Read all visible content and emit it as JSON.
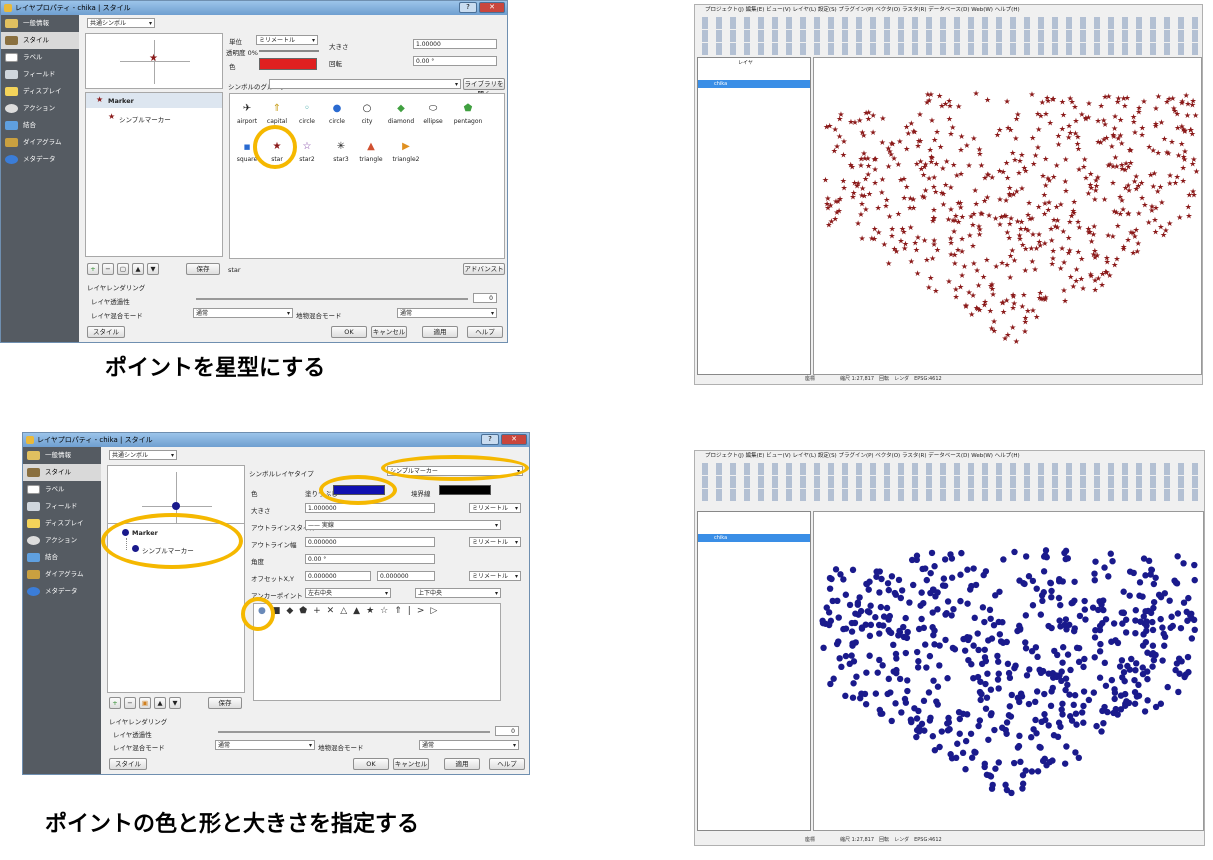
{
  "captions": {
    "top": "ポイントを星型にする",
    "bottom": "ポイントの色と形と大きさを指定する"
  },
  "dialog1": {
    "title": "レイヤプロパティ - chika | スタイル",
    "help_button": "?",
    "close_button": "✕",
    "sidebar": [
      "一般情報",
      "スタイル",
      "ラベル",
      "フィールド",
      "ディスプレイ",
      "アクション",
      "結合",
      "ダイアグラム",
      "メタデータ"
    ],
    "renderer": "共通シンボル",
    "unit_label": "単位",
    "unit_value": "ミリメートル",
    "transparency_label": "透明度 0%",
    "color_label": "色",
    "size_label": "大きさ",
    "size_value": "1.00000",
    "rotation_label": "回転",
    "rotation_value": "0.00 °",
    "group_label": "シンボルのグループ",
    "library_button": "ライブラリを開く",
    "tree_marker": "Marker",
    "tree_simple": "シンプルマーカー",
    "symbols": [
      "airport",
      "capital",
      "circle",
      "city",
      "diamond",
      "ellipse",
      "pentagon",
      "square",
      "star",
      "star2",
      "star3",
      "triangle",
      "triangle2"
    ],
    "save_button": "保存",
    "name_value": "star",
    "advanced_button": "アドバンスト",
    "rendering_group": "レイヤレンダリング",
    "layer_transparency": "レイヤ透過性",
    "transparency_value": "0",
    "blend_mode_label": "レイヤ混合モード",
    "blend_mode_value": "通常",
    "feature_blend_label": "地物混合モード",
    "feature_blend_value": "通常",
    "style_button": "スタイル",
    "ok": "OK",
    "cancel": "キャンセル",
    "apply": "適用",
    "help": "ヘルプ"
  },
  "dialog2": {
    "title": "レイヤプロパティ - chika | スタイル",
    "help_button": "?",
    "close_button": "✕",
    "sidebar": [
      "一般情報",
      "スタイル",
      "ラベル",
      "フィールド",
      "ディスプレイ",
      "アクション",
      "結合",
      "ダイアグラム",
      "メタデータ"
    ],
    "renderer": "共通シンボル",
    "layer_type_label": "シンボルレイヤタイプ",
    "layer_type_value": "シンプルマーカー",
    "color_label": "色",
    "fill_label": "塗りつぶし",
    "border_label": "境界線",
    "size_label": "大きさ",
    "size_value": "1.000000",
    "unit_value": "ミリメートル",
    "outline_style_label": "アウトラインスタイル",
    "outline_style_value": "—— 実線",
    "outline_width_label": "アウトライン幅",
    "outline_width_value": "0.000000",
    "angle_label": "角度",
    "angle_value": "0.00 °",
    "offset_label": "オフセットX,Y",
    "offset_x": "0.000000",
    "offset_y": "0.000000",
    "anchor_label": "アンカーポイント",
    "anchor_h": "左右中央",
    "anchor_v": "上下中央",
    "tree_marker": "Marker",
    "tree_simple": "シンプルマーカー",
    "shapes": [
      "●",
      "■",
      "◆",
      "⬟",
      "+",
      "✕",
      "△",
      "▲",
      "★",
      "☆",
      "⇑",
      "|",
      ">",
      "▷"
    ],
    "save_button": "保存",
    "rendering_group": "レイヤレンダリング",
    "layer_transparency": "レイヤ透過性",
    "transparency_value": "0",
    "blend_mode_label": "レイヤ混合モード",
    "blend_mode_value": "通常",
    "feature_blend_label": "地物混合モード",
    "feature_blend_value": "通常",
    "style_button": "スタイル",
    "ok": "OK",
    "cancel": "キャンセル",
    "apply": "適用",
    "help": "ヘルプ"
  },
  "qgis": {
    "menu": "プロジェクト(J)  編集(E)  ビュー(V)  レイヤ(L)  設定(S)  プラグイン(P)  ベクタ(O)  ラスタ(R)  データベース(D)  Web(W)  ヘルプ(H)",
    "layers_title": "レイヤ",
    "layer_name": "chika",
    "status_coord": "座標",
    "status_scale": "縮尺",
    "status_scale_value": "1:27,817",
    "status_rotation": "回転",
    "status_render": "レンダ",
    "status_crs": "EPSG:4612"
  },
  "colors": {
    "star": "#8b1a1a",
    "circle": "#1a1a8c",
    "highlight": "#f5b800",
    "red_swatch": "#e02020",
    "blue_swatch": "#1010b0"
  }
}
